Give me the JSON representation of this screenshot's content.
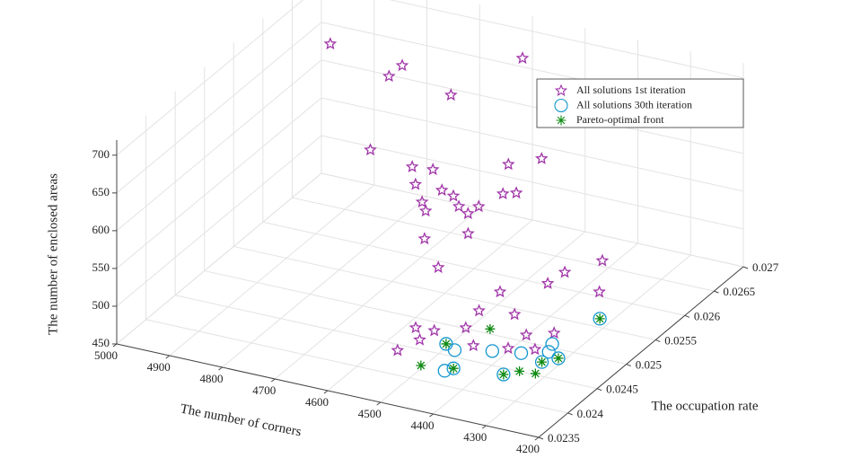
{
  "chart_data": {
    "type": "scatter3d",
    "xlabel": "The number of corners",
    "ylabel": "The occupation rate",
    "zlabel": "The number of enclosed areas",
    "xlim": [
      4200,
      5000
    ],
    "ylim": [
      0.0235,
      0.027
    ],
    "zlim": [
      450,
      720
    ],
    "xticks": [
      4200,
      4300,
      4400,
      4500,
      4600,
      4700,
      4800,
      4900,
      5000
    ],
    "yticks": [
      0.0235,
      0.024,
      0.0245,
      0.025,
      0.0255,
      0.026,
      0.0265,
      0.027
    ],
    "zticks": [
      450,
      500,
      550,
      600,
      650,
      700
    ],
    "grid": true,
    "legend_position": "upper right",
    "series": [
      {
        "name": "All solutions 1st iteration",
        "color": "#a035a8",
        "marker": "star",
        "x": [
          4880,
          4761,
          4747,
          4580,
          4648,
          4711,
          4425,
          4478,
          4645,
          4609,
          4622,
          4572,
          4558,
          4474,
          4442,
          4594,
          4531,
          4501,
          4518,
          4586,
          4509,
          4565,
          4520,
          4300,
          4349,
          4368,
          4289,
          4465,
          4476,
          4554,
          4521,
          4479,
          4423,
          4554,
          4533,
          4449,
          4382,
          4350,
          4392,
          4337
        ],
        "y": [
          0.02607,
          0.026,
          0.0261,
          0.02665,
          0.02604,
          0.02523,
          0.02558,
          0.02549,
          0.02535,
          0.02538,
          0.0252,
          0.0252,
          0.02527,
          0.02536,
          0.0253,
          0.02506,
          0.02512,
          0.02519,
          0.02516,
          0.02505,
          0.02508,
          0.02484,
          0.02467,
          0.02549,
          0.02529,
          0.02517,
          0.02534,
          0.02523,
          0.02497,
          0.02459,
          0.02461,
          0.02477,
          0.0251,
          0.02428,
          0.02447,
          0.02463,
          0.02493,
          0.02479,
          0.02471,
          0.025
        ],
        "z": [
          700,
          680,
          690,
          690,
          670,
          640,
          650,
          640,
          620,
          620,
          610,
          610,
          600,
          610,
          620,
          600,
          600,
          600,
          590,
          590,
          570,
          570,
          550,
          540,
          530,
          520,
          510,
          490,
          480,
          470,
          470,
          470,
          475,
          460,
          465,
          460,
          465,
          460,
          460,
          470
        ]
      },
      {
        "name": "All solutions 30th iteration",
        "color": "#1597cf",
        "marker": "circle",
        "x": [
          4493,
          4447,
          4438,
          4352,
          4317,
          4299,
          4308,
          4411,
          4364,
          4325,
          4334,
          4469
        ],
        "y": [
          0.02456,
          0.02412,
          0.02419,
          0.02427,
          0.02461,
          0.02473,
          0.02552,
          0.02461,
          0.02468,
          0.0248,
          0.02494,
          0.02449
        ],
        "z": [
          460,
          460,
          460,
          460,
          460,
          460,
          460,
          460,
          460,
          460,
          460,
          460
        ]
      },
      {
        "name": "Pareto-optimal front",
        "color": "#0e8a12",
        "marker": "asterisk",
        "x": [
          4492,
          4493,
          4438,
          4454,
          4352,
          4334,
          4306,
          4317,
          4299,
          4308
        ],
        "y": [
          0.02412,
          0.02456,
          0.02419,
          0.02496,
          0.02427,
          0.02438,
          0.0244,
          0.02461,
          0.02473,
          0.02552
        ],
        "z": [
          460,
          460,
          460,
          460,
          460,
          460,
          460,
          460,
          460,
          460
        ]
      }
    ]
  }
}
